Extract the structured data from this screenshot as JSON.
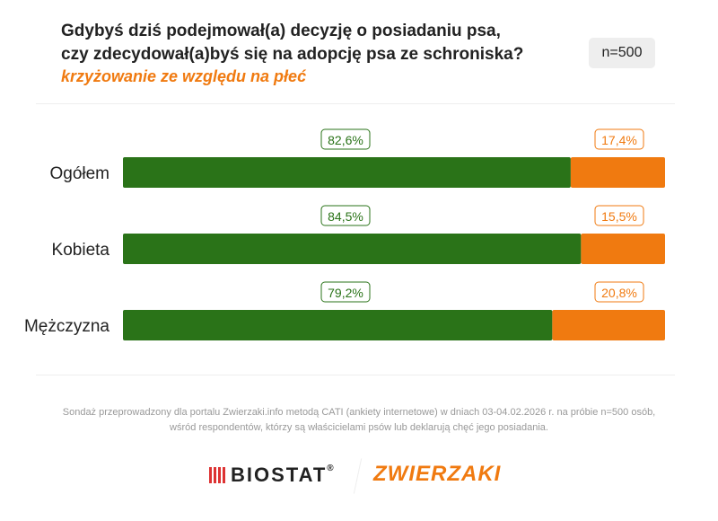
{
  "header": {
    "title_line1": "Gdybyś dziś podejmował(a) decyzję o posiadaniu psa,",
    "title_line2": "czy zdecydował(a)byś się na adopcję psa ze schroniska?",
    "subtitle": "krzyżowanie ze względu na płeć",
    "sample": "n=500"
  },
  "chart_data": {
    "type": "bar",
    "orientation": "horizontal",
    "stacked": true,
    "xlim": [
      0,
      100
    ],
    "categories": [
      "Ogółem",
      "Kobieta",
      "Mężczyzna"
    ],
    "series": [
      {
        "values": [
          82.6,
          84.5,
          79.2
        ],
        "labels": [
          "82,6%",
          "84,5%",
          "79,2%"
        ],
        "color": "#2a7318"
      },
      {
        "values": [
          17.4,
          15.5,
          20.8
        ],
        "labels": [
          "17,4%",
          "15,5%",
          "20,8%"
        ],
        "color": "#f07a10"
      }
    ]
  },
  "footer": {
    "note_line1": "Sondaż przeprowadzony dla portalu Zwierzaki.info metodą CATI (ankiety internetowe) w dniach 03-04.02.2026 r. na próbie n=500 osób,",
    "note_line2": "wśród respondentów, którzy są właścicielami psów lub deklarują chęć jego posiadania.",
    "logo1": "BIOSTAT",
    "logo2": "ZWIERZAKI"
  }
}
